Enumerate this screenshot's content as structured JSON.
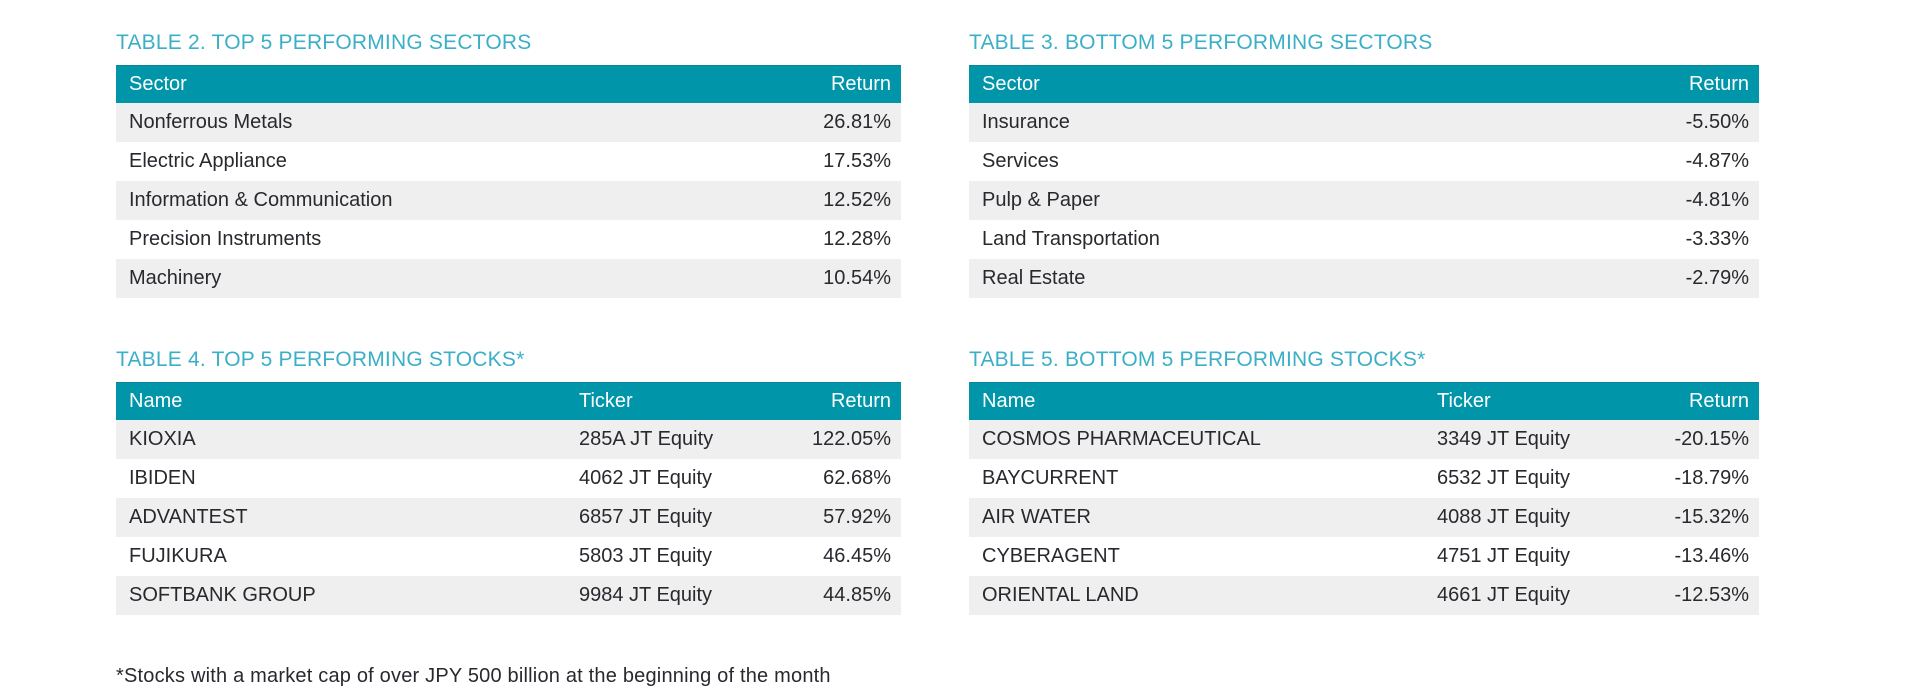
{
  "colors": {
    "header_bg": "#0095a8",
    "title_teal": "#3bafc7",
    "row_stripe": "#efefef",
    "body_text": "#2a282e",
    "header_text": "#ffffff"
  },
  "tables": {
    "top_sectors": {
      "title": "TABLE 2. TOP 5 PERFORMING SECTORS",
      "columns": [
        "Sector",
        "Return"
      ],
      "rows": [
        [
          "Nonferrous Metals",
          "26.81%"
        ],
        [
          "Electric Appliance",
          "17.53%"
        ],
        [
          "Information & Communication",
          "12.52%"
        ],
        [
          "Precision Instruments",
          "12.28%"
        ],
        [
          "Machinery",
          "10.54%"
        ]
      ]
    },
    "bottom_sectors": {
      "title": "TABLE 3. BOTTOM 5 PERFORMING SECTORS",
      "columns": [
        "Sector",
        "Return"
      ],
      "rows": [
        [
          "Insurance",
          "-5.50%"
        ],
        [
          "Services",
          "-4.87%"
        ],
        [
          "Pulp & Paper",
          "-4.81%"
        ],
        [
          "Land Transportation",
          "-3.33%"
        ],
        [
          "Real Estate",
          "-2.79%"
        ]
      ]
    },
    "top_stocks": {
      "title": "TABLE 4. TOP 5 PERFORMING STOCKS*",
      "columns": [
        "Name",
        "Ticker",
        "Return"
      ],
      "rows": [
        [
          "KIOXIA",
          "285A JT Equity",
          "122.05%"
        ],
        [
          "IBIDEN",
          "4062 JT Equity",
          "62.68%"
        ],
        [
          "ADVANTEST",
          "6857 JT Equity",
          "57.92%"
        ],
        [
          "FUJIKURA",
          "5803 JT Equity",
          "46.45%"
        ],
        [
          "SOFTBANK GROUP",
          "9984 JT Equity",
          "44.85%"
        ]
      ]
    },
    "bottom_stocks": {
      "title": "TABLE 5. BOTTOM 5 PERFORMING STOCKS*",
      "columns": [
        "Name",
        "Ticker",
        "Return"
      ],
      "rows": [
        [
          "COSMOS PHARMACEUTICAL",
          "3349 JT Equity",
          "-20.15%"
        ],
        [
          "BAYCURRENT",
          "6532 JT Equity",
          "-18.79%"
        ],
        [
          "AIR WATER",
          "4088 JT Equity",
          "-15.32%"
        ],
        [
          "CYBERAGENT",
          "4751 JT Equity",
          "-13.46%"
        ],
        [
          "ORIENTAL LAND",
          "4661 JT Equity",
          "-12.53%"
        ]
      ]
    }
  },
  "footnote": "*Stocks with a market cap of over JPY 500 billion at the beginning of the month"
}
